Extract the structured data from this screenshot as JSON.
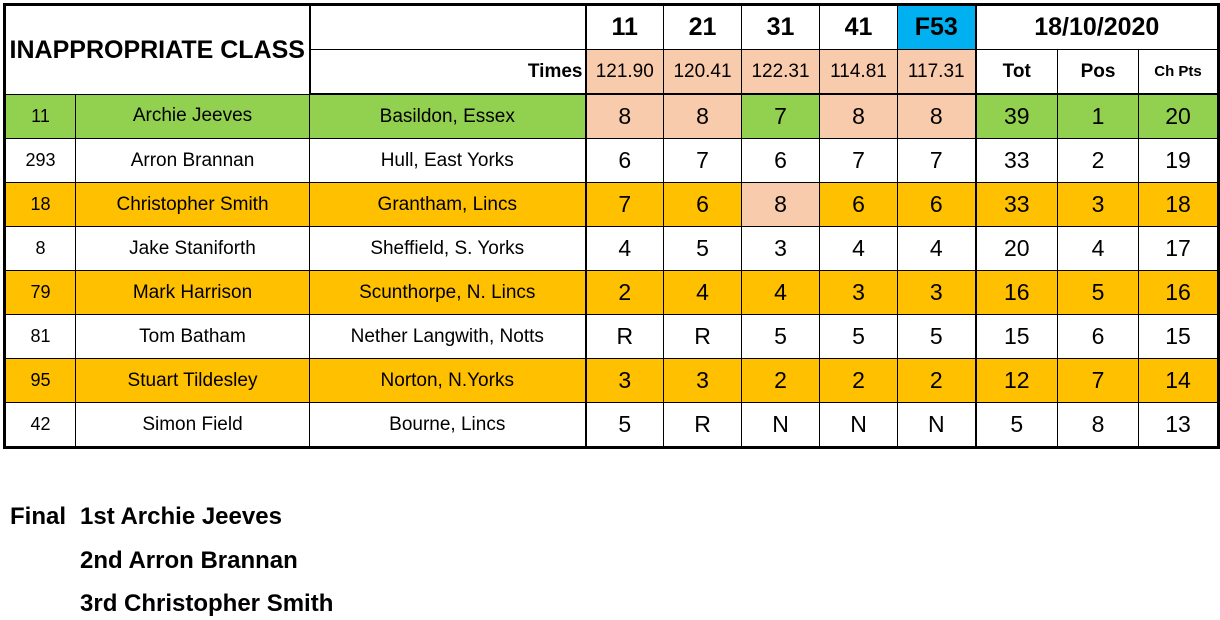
{
  "colors": {
    "winner": "#92D050",
    "alt_row": "#FFC000",
    "highlight": "#F8CBAD",
    "final_round": "#00B0F0",
    "plain": "#FFFFFF"
  },
  "header": {
    "title": "INAPPROPRIATE CLASS",
    "rounds": [
      "11",
      "21",
      "31",
      "41",
      "F53"
    ],
    "date": "18/10/2020",
    "times_label": "Times",
    "times": [
      "121.90",
      "120.41",
      "122.31",
      "114.81",
      "117.31"
    ],
    "tot_label": "Tot",
    "pos_label": "Pos",
    "chpts_label": "Ch Pts"
  },
  "rows": [
    {
      "id": "11",
      "name": "Archie Jeeves",
      "location": "Basildon, Essex",
      "scores": [
        "8",
        "8",
        "7",
        "8",
        "8"
      ],
      "tot": "39",
      "pos": "1",
      "chpts": "20",
      "row_color": "winner",
      "highlight": [
        true,
        true,
        false,
        true,
        true
      ]
    },
    {
      "id": "293",
      "name": "Arron Brannan",
      "location": "Hull, East Yorks",
      "scores": [
        "6",
        "7",
        "6",
        "7",
        "7"
      ],
      "tot": "33",
      "pos": "2",
      "chpts": "19",
      "row_color": "plain",
      "highlight": [
        false,
        false,
        false,
        false,
        false
      ]
    },
    {
      "id": "18",
      "name": "Christopher Smith",
      "location": "Grantham, Lincs",
      "scores": [
        "7",
        "6",
        "8",
        "6",
        "6"
      ],
      "tot": "33",
      "pos": "3",
      "chpts": "18",
      "row_color": "alt_row",
      "highlight": [
        false,
        false,
        true,
        false,
        false
      ]
    },
    {
      "id": "8",
      "name": "Jake Staniforth",
      "location": "Sheffield, S. Yorks",
      "scores": [
        "4",
        "5",
        "3",
        "4",
        "4"
      ],
      "tot": "20",
      "pos": "4",
      "chpts": "17",
      "row_color": "plain",
      "highlight": [
        false,
        false,
        false,
        false,
        false
      ]
    },
    {
      "id": "79",
      "name": "Mark Harrison",
      "location": "Scunthorpe, N. Lincs",
      "scores": [
        "2",
        "4",
        "4",
        "3",
        "3"
      ],
      "tot": "16",
      "pos": "5",
      "chpts": "16",
      "row_color": "alt_row",
      "highlight": [
        false,
        false,
        false,
        false,
        false
      ]
    },
    {
      "id": "81",
      "name": "Tom Batham",
      "location": "Nether Langwith, Notts",
      "scores": [
        "R",
        "R",
        "5",
        "5",
        "5"
      ],
      "tot": "15",
      "pos": "6",
      "chpts": "15",
      "row_color": "plain",
      "highlight": [
        false,
        false,
        false,
        false,
        false
      ]
    },
    {
      "id": "95",
      "name": "Stuart Tildesley",
      "location": "Norton, N.Yorks",
      "scores": [
        "3",
        "3",
        "2",
        "2",
        "2"
      ],
      "tot": "12",
      "pos": "7",
      "chpts": "14",
      "row_color": "alt_row",
      "highlight": [
        false,
        false,
        false,
        false,
        false
      ]
    },
    {
      "id": "42",
      "name": "Simon Field",
      "location": "Bourne, Lincs",
      "scores": [
        "5",
        "R",
        "N",
        "N",
        "N"
      ],
      "tot": "5",
      "pos": "8",
      "chpts": "13",
      "row_color": "plain",
      "highlight": [
        false,
        false,
        false,
        false,
        false
      ]
    }
  ],
  "final": {
    "label": "Final",
    "places": [
      "1st Archie Jeeves",
      "2nd Arron Brannan",
      "3rd Christopher Smith"
    ]
  }
}
